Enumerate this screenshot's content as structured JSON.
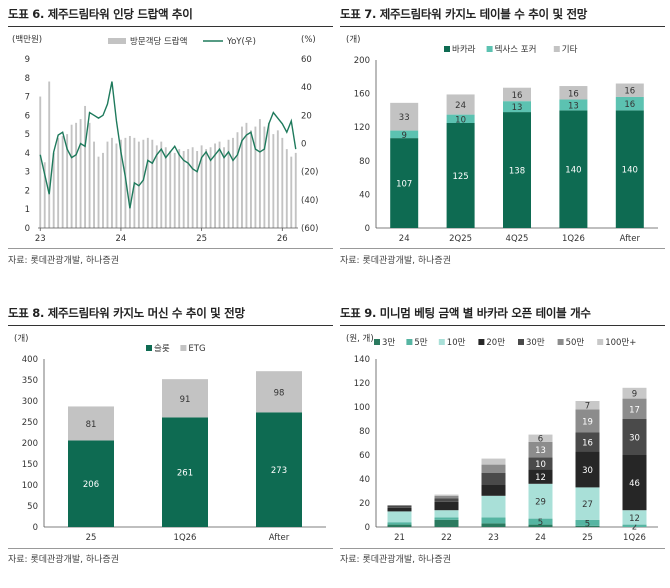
{
  "panels": [
    {
      "title": "도표 6. 제주드림타워 인당 드랍액 추이",
      "source": "자료: 롯데관광개발, 하나증권"
    },
    {
      "title": "도표 7. 제주드림타워 카지노 테이블 수 추이 및 전망",
      "source": "자료: 롯데관광개발, 하나증권"
    },
    {
      "title": "도표 8. 제주드림타워 카지노 머신 수 추이 및 전망",
      "source": "자료: 롯데관광개발, 하나증권"
    },
    {
      "title": "도표 9. 미니멈 베팅 금액 별 바카라 오픈 테이블 개수",
      "source": "자료: 롯데관광개발, 하나증권"
    }
  ],
  "chart_data": [
    {
      "type": "bar",
      "combo": "bar+line",
      "yunit_left": "(백만원)",
      "yunit_right": "(%)",
      "ylim": [
        0,
        9
      ],
      "y2lim": [
        -60,
        60
      ],
      "yticks": [
        "0",
        "1",
        "2",
        "3",
        "4",
        "5",
        "6",
        "7",
        "8",
        "9"
      ],
      "y2ticks": [
        "(60)",
        "(40)",
        "(20)",
        "0",
        "20",
        "40",
        "60"
      ],
      "xtick_labels": [
        "23",
        "24",
        "25",
        "26"
      ],
      "xtick_index": [
        0,
        18,
        36,
        54
      ],
      "legend": [
        "방문객당 드랍액",
        "YoY(우)"
      ],
      "grid": false,
      "series": [
        {
          "name": "방문객당 드랍액",
          "kind": "bar",
          "values": [
            7.0,
            3.5,
            7.8,
            4.0,
            4.8,
            4.9,
            5.0,
            5.5,
            5.6,
            5.8,
            6.5,
            5.6,
            4.6,
            3.8,
            4.0,
            4.6,
            4.8,
            4.5,
            4.7,
            4.8,
            4.9,
            4.8,
            4.6,
            4.7,
            4.8,
            4.7,
            4.4,
            4.6,
            4.3,
            4.1,
            4.0,
            4.2,
            4.1,
            4.2,
            4.3,
            4.1,
            4.4,
            4.2,
            4.3,
            4.5,
            4.6,
            4.3,
            4.7,
            4.8,
            5.1,
            5.4,
            5.6,
            5.2,
            5.4,
            5.8,
            5.4,
            5.6,
            5.0,
            5.2,
            4.8,
            4.2,
            3.8,
            4.0
          ]
        },
        {
          "name": "YoY(우)",
          "kind": "line",
          "values": [
            -8,
            -22,
            -36,
            -6,
            6,
            8,
            -4,
            -10,
            -8,
            0,
            -2,
            22,
            20,
            18,
            20,
            28,
            44,
            16,
            -6,
            -24,
            -46,
            -28,
            -30,
            -26,
            -12,
            -14,
            -8,
            -4,
            -10,
            -6,
            -2,
            -8,
            -12,
            -14,
            -18,
            -20,
            -10,
            -6,
            -12,
            -8,
            -4,
            -10,
            -6,
            -12,
            -8,
            2,
            6,
            8,
            -4,
            -6,
            -4,
            14,
            22,
            18,
            14,
            8,
            16,
            -4
          ]
        }
      ]
    },
    {
      "type": "bar",
      "stacked": true,
      "yunit": "(개)",
      "categories": [
        "24",
        "2Q25",
        "4Q25",
        "1Q26",
        "After"
      ],
      "ylim": [
        0,
        200
      ],
      "yticks": [
        "0",
        "40",
        "80",
        "120",
        "160",
        "200"
      ],
      "legend": [
        "바카라",
        "텍사스 포커",
        "기타"
      ],
      "grid": false,
      "series": [
        {
          "name": "바카라",
          "values": [
            107,
            125,
            138,
            140,
            140
          ]
        },
        {
          "name": "텍사스 포커",
          "values": [
            9,
            10,
            13,
            13,
            16
          ]
        },
        {
          "name": "기타",
          "values": [
            33,
            24,
            16,
            16,
            16
          ]
        }
      ]
    },
    {
      "type": "bar",
      "stacked": true,
      "yunit": "(개)",
      "categories": [
        "25",
        "1Q26",
        "After"
      ],
      "ylim": [
        0,
        400
      ],
      "yticks": [
        "0",
        "50",
        "100",
        "150",
        "200",
        "250",
        "300",
        "350",
        "400"
      ],
      "legend": [
        "슬롯",
        "ETG"
      ],
      "grid": false,
      "series": [
        {
          "name": "슬롯",
          "values": [
            206,
            261,
            273
          ]
        },
        {
          "name": "ETG",
          "values": [
            81,
            91,
            98
          ]
        }
      ]
    },
    {
      "type": "bar",
      "stacked": true,
      "yunit": "(원, 개)",
      "categories": [
        "21",
        "22",
        "23",
        "24",
        "25",
        "1Q26"
      ],
      "ylim": [
        0,
        140
      ],
      "yticks": [
        "0",
        "20",
        "40",
        "60",
        "80",
        "100",
        "120",
        "140"
      ],
      "legend": [
        "3만",
        "5만",
        "10만",
        "20만",
        "30만",
        "50만",
        "100만+"
      ],
      "grid": false,
      "series": [
        {
          "name": "3만",
          "values": [
            2,
            6,
            3,
            2,
            1,
            0
          ]
        },
        {
          "name": "5만",
          "values": [
            2,
            2,
            5,
            5,
            5,
            2
          ]
        },
        {
          "name": "10만",
          "values": [
            9,
            6,
            18,
            29,
            27,
            12
          ]
        },
        {
          "name": "20만",
          "values": [
            3,
            7,
            9,
            12,
            30,
            46
          ]
        },
        {
          "name": "30만",
          "values": [
            2,
            3,
            10,
            10,
            16,
            30
          ]
        },
        {
          "name": "50만",
          "values": [
            0,
            2,
            7,
            13,
            19,
            17
          ]
        },
        {
          "name": "100만+",
          "values": [
            0,
            1,
            5,
            6,
            7,
            9
          ]
        }
      ],
      "segment_labels": [
        [
          null,
          null,
          null,
          null,
          null,
          null,
          null
        ],
        [
          null,
          null,
          null,
          null,
          null,
          null,
          null
        ],
        [
          null,
          null,
          null,
          null,
          null,
          null,
          null
        ],
        [
          null,
          "5",
          "29",
          "12",
          "10",
          "13",
          "6"
        ],
        [
          null,
          "5",
          "27",
          "30",
          "16",
          "19",
          "7"
        ],
        [
          null,
          "2",
          "12",
          "46",
          "30",
          "17",
          "9"
        ]
      ]
    }
  ],
  "colors": {
    "green": "#0e6b52",
    "teal": "#5cc2b1",
    "gray": "#c3c3c3",
    "line_green": "#1e7a5c",
    "p9": [
      "#2b7a5f",
      "#56b5a2",
      "#a9e0d8",
      "#262626",
      "#4a4a4a",
      "#8c8c8c",
      "#c8c8c8"
    ]
  }
}
